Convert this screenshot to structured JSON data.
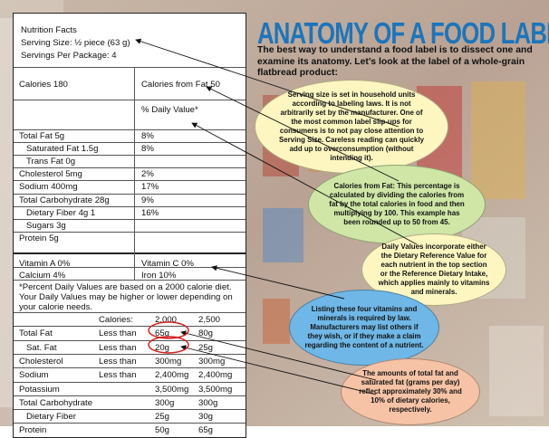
{
  "label": {
    "title": "Nutrition Facts",
    "serving_size": "Serving Size: ½ piece (63 g)",
    "servings": "Servings Per Package: 4",
    "calories": "Calories 180",
    "calories_fat": "Calories from Fat 50",
    "pct_dv": "% Daily Value*",
    "nutrients": [
      {
        "name": "Total Fat 5g",
        "dv": "8%"
      },
      {
        "name": "Saturated Fat 1.5g",
        "dv": "8%"
      },
      {
        "name": "Trans Fat 0g",
        "dv": ""
      },
      {
        "name": "Cholesterol 5mg",
        "dv": "2%"
      },
      {
        "name": "Sodium 400mg",
        "dv": "17%"
      },
      {
        "name": "Total Carbohydrate 28g",
        "dv": "9%"
      },
      {
        "name": "Dietary Fiber 4g 1",
        "dv": "16%"
      },
      {
        "name": "Sugars 3g",
        "dv": ""
      },
      {
        "name": "Protein 5g",
        "dv": ""
      }
    ],
    "vitamins": [
      {
        "left": "Vitamin A 0%",
        "right": "Vitamin C 0%"
      },
      {
        "left": "Calcium 4%",
        "right": "Iron 10%"
      }
    ],
    "footnote": "*Percent Daily Values are based on a 2000 calorie diet. Your Daily Values may be higher or lower depending on your calorie needs.",
    "ref_header": [
      "",
      "Calories:",
      "2,000",
      "2,500"
    ],
    "ref_rows": [
      [
        "Total Fat",
        "Less than",
        "65g",
        "80g"
      ],
      [
        "Sat. Fat",
        "Less than",
        "20g",
        "25g"
      ],
      [
        "Cholesterol",
        "Less than",
        "300mg",
        "300mg"
      ],
      [
        "Sodium",
        "Less than",
        "2,400mg",
        "2,400mg"
      ],
      [
        "Potassium",
        "",
        "3,500mg",
        "3,500mg"
      ],
      [
        "Total Carbohydrate",
        "",
        "300g",
        "300g"
      ],
      [
        "Dietary Fiber",
        "",
        "25g",
        "30g"
      ],
      [
        "Protein",
        "",
        "50g",
        "65g"
      ]
    ]
  },
  "title": "ANATOMY OF A FOOD LABEL",
  "intro": "The best way to understand a food label is to dissect one and examine its anatomy. Let’s look at the label of a whole-grain flatbread product:",
  "callouts": [
    {
      "text": "Serving size is set in household units according to labeling laws. It is not arbitrarily set by the manufacturer. One of the most common label slip-ups for consumers is to not pay close attention to Serving Size. Careless reading can quickly add up to overconsumption (without intending it).",
      "color": "#fdf6c0"
    },
    {
      "text": "Calories from Fat: This percentage is calculated by dividing the calories from fat by the total calories in food and then multiplying by 100. This example has been rounded up to 50 from 45.",
      "color": "#cfe6a6"
    },
    {
      "text": "Daily Values incorporate either the Dietary Reference Value for each nutrient in the top section or the Reference Dietary Intake, which applies mainly to vitamins and minerals.",
      "color": "#fdf6c0"
    },
    {
      "text": "Listing these four vitamins and minerals is required by law. Manufacturers may list others if they wish, or if they make a claim regarding the content of a nutrient.",
      "color": "#6fb7e6"
    },
    {
      "text": "The amounts of total fat and saturated fat (grams per day) reflect approximately 30% and 10% of dietary calories, respectively.",
      "color": "#f6c3a6"
    }
  ],
  "colors": {
    "title": "#1b75bc",
    "highlight_circle": "#d32020"
  }
}
